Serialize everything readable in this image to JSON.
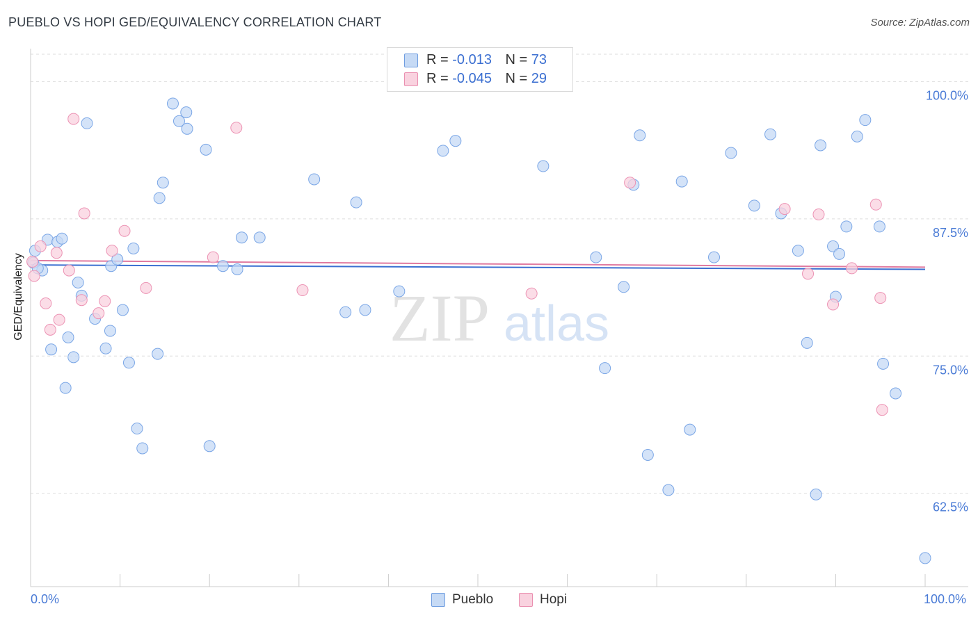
{
  "title": "PUEBLO VS HOPI GED/EQUIVALENCY CORRELATION CHART",
  "source": "Source: ZipAtlas.com",
  "watermark": {
    "zip": "ZIP",
    "atlas": "atlas"
  },
  "stats": [
    {
      "r_label": "R = ",
      "r_value": "-0.013",
      "n_label": "N = ",
      "n_value": "73",
      "color": "#a9c6f0",
      "border": "#6f9de0"
    },
    {
      "r_label": "R = ",
      "r_value": "-0.045",
      "n_label": "N = ",
      "n_value": "29",
      "color": "#f7c5d5",
      "border": "#ea8fb0"
    }
  ],
  "legend": [
    {
      "label": "Pueblo",
      "color": "#b8d0f2",
      "border": "#6f9de0"
    },
    {
      "label": "Hopi",
      "color": "#f8cad9",
      "border": "#ea8fb0"
    }
  ],
  "chart_data": {
    "type": "scatter",
    "title": "PUEBLO VS HOPI GED/EQUIVALENCY CORRELATION CHART",
    "xlabel": "",
    "ylabel": "GED/Equivalency",
    "xlim": [
      0,
      100
    ],
    "ylim": [
      54,
      103
    ],
    "x_tick_labels": [
      "0.0%",
      "100.0%"
    ],
    "y_ticks": [
      62.5,
      75.0,
      87.5,
      100.0
    ],
    "y_tick_labels": [
      "62.5%",
      "75.0%",
      "87.5%",
      "100.0%"
    ],
    "grid": "horizontal dashed",
    "legend_position": "bottom-center",
    "series": [
      {
        "name": "Pueblo",
        "color": "#7aa6e6",
        "fill": "#c6daf5",
        "trend": [
          [
            0,
            83.3
          ],
          [
            100,
            82.9
          ]
        ],
        "points": [
          [
            0.3,
            83.5
          ],
          [
            0.5,
            84.6
          ],
          [
            1.3,
            82.8
          ],
          [
            1.9,
            85.6
          ],
          [
            2.3,
            75.6
          ],
          [
            3.0,
            85.4
          ],
          [
            3.5,
            85.7
          ],
          [
            3.9,
            72.1
          ],
          [
            4.2,
            76.7
          ],
          [
            4.8,
            74.9
          ],
          [
            5.3,
            81.7
          ],
          [
            5.7,
            80.5
          ],
          [
            6.3,
            96.2
          ],
          [
            7.2,
            78.4
          ],
          [
            8.4,
            75.7
          ],
          [
            8.9,
            77.3
          ],
          [
            9.0,
            83.2
          ],
          [
            9.7,
            83.8
          ],
          [
            10.3,
            79.2
          ],
          [
            11.0,
            74.4
          ],
          [
            11.5,
            84.8
          ],
          [
            11.9,
            68.4
          ],
          [
            12.5,
            66.6
          ],
          [
            14.2,
            75.2
          ],
          [
            14.4,
            89.4
          ],
          [
            14.8,
            90.8
          ],
          [
            15.9,
            98.0
          ],
          [
            16.6,
            96.4
          ],
          [
            17.4,
            97.2
          ],
          [
            17.5,
            95.7
          ],
          [
            19.6,
            93.8
          ],
          [
            20.0,
            66.8
          ],
          [
            21.5,
            83.2
          ],
          [
            23.1,
            82.9
          ],
          [
            23.6,
            85.8
          ],
          [
            25.6,
            85.8
          ],
          [
            31.7,
            91.1
          ],
          [
            35.2,
            79.0
          ],
          [
            36.4,
            89.0
          ],
          [
            37.4,
            79.2
          ],
          [
            41.2,
            80.9
          ],
          [
            46.1,
            93.7
          ],
          [
            47.5,
            94.6
          ],
          [
            57.3,
            92.3
          ],
          [
            63.2,
            84.0
          ],
          [
            64.2,
            73.9
          ],
          [
            66.3,
            81.3
          ],
          [
            67.4,
            90.6
          ],
          [
            68.1,
            95.1
          ],
          [
            69.0,
            66.0
          ],
          [
            71.3,
            62.8
          ],
          [
            72.8,
            90.9
          ],
          [
            73.7,
            68.3
          ],
          [
            76.4,
            84.0
          ],
          [
            78.3,
            93.5
          ],
          [
            80.9,
            88.7
          ],
          [
            82.7,
            95.2
          ],
          [
            83.9,
            88.0
          ],
          [
            85.8,
            84.6
          ],
          [
            86.8,
            76.2
          ],
          [
            87.8,
            62.4
          ],
          [
            88.3,
            94.2
          ],
          [
            89.7,
            85.0
          ],
          [
            90.0,
            80.4
          ],
          [
            90.4,
            84.3
          ],
          [
            91.2,
            86.8
          ],
          [
            92.4,
            95.0
          ],
          [
            93.3,
            96.5
          ],
          [
            94.9,
            86.8
          ],
          [
            95.3,
            74.3
          ],
          [
            96.7,
            71.6
          ],
          [
            100.0,
            56.6
          ],
          [
            0.8,
            83.0
          ]
        ]
      },
      {
        "name": "Hopi",
        "color": "#ec93b4",
        "fill": "#f9d2df",
        "trend": [
          [
            0,
            83.7
          ],
          [
            100,
            83.1
          ]
        ],
        "points": [
          [
            0.4,
            82.3
          ],
          [
            1.1,
            85.0
          ],
          [
            1.7,
            79.8
          ],
          [
            2.2,
            77.4
          ],
          [
            2.9,
            84.4
          ],
          [
            3.2,
            78.3
          ],
          [
            4.3,
            82.8
          ],
          [
            4.8,
            96.6
          ],
          [
            5.7,
            80.1
          ],
          [
            6.0,
            88.0
          ],
          [
            7.6,
            78.9
          ],
          [
            8.3,
            80.0
          ],
          [
            9.1,
            84.6
          ],
          [
            10.5,
            86.4
          ],
          [
            12.9,
            81.2
          ],
          [
            20.4,
            84.0
          ],
          [
            23.0,
            95.8
          ],
          [
            30.4,
            81.0
          ],
          [
            56.0,
            80.7
          ],
          [
            67.0,
            90.8
          ],
          [
            84.3,
            88.4
          ],
          [
            86.9,
            82.5
          ],
          [
            88.1,
            87.9
          ],
          [
            89.7,
            79.7
          ],
          [
            91.8,
            83.0
          ],
          [
            94.5,
            88.8
          ],
          [
            95.0,
            80.3
          ],
          [
            95.2,
            70.1
          ],
          [
            0.2,
            83.6
          ]
        ]
      }
    ]
  }
}
